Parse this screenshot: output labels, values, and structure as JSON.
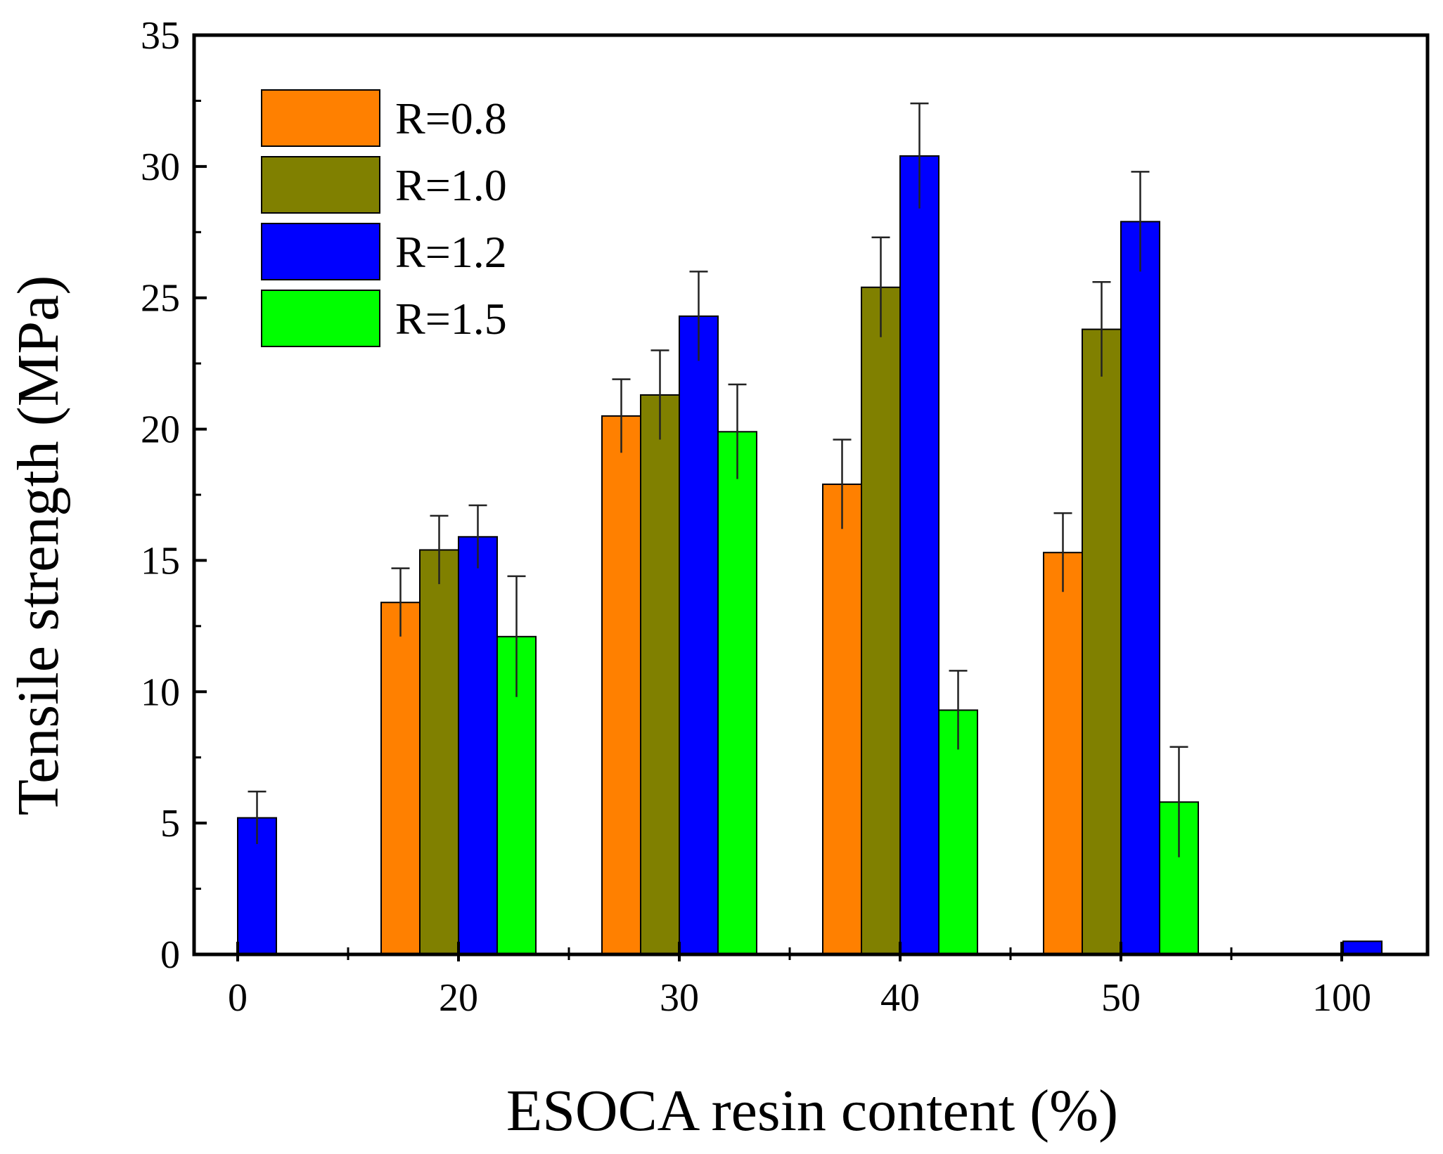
{
  "chart_data": {
    "type": "bar",
    "title": "",
    "xlabel": "ESOCA resin content (%)",
    "ylabel": "Tensile strength (MPa)",
    "categories": [
      "0",
      "20",
      "30",
      "40",
      "50",
      "100"
    ],
    "ylim": [
      0,
      35
    ],
    "yticks": [
      "0",
      "5",
      "10",
      "15",
      "20",
      "25",
      "30",
      "35"
    ],
    "yticks_values": [
      0,
      5,
      10,
      15,
      20,
      25,
      30,
      35
    ],
    "grid": false,
    "legend_position": "top-left",
    "series": [
      {
        "name": "R=0.8",
        "color": "#ff8000",
        "values": [
          null,
          13.4,
          20.5,
          17.9,
          15.3,
          null
        ],
        "errors": [
          null,
          1.3,
          1.4,
          1.7,
          1.5,
          null
        ]
      },
      {
        "name": "R=1.0",
        "color": "#808000",
        "values": [
          null,
          15.4,
          21.3,
          25.4,
          23.8,
          null
        ],
        "errors": [
          null,
          1.3,
          1.7,
          1.9,
          1.8,
          null
        ]
      },
      {
        "name": "R=1.2",
        "color": "#0000ff",
        "values": [
          5.2,
          15.9,
          24.3,
          30.4,
          27.9,
          0.5
        ],
        "errors": [
          1.0,
          1.2,
          1.7,
          2.0,
          1.9,
          null
        ]
      },
      {
        "name": "R=1.5",
        "color": "#00ff00",
        "values": [
          null,
          12.1,
          19.9,
          9.3,
          5.8,
          null
        ],
        "errors": [
          null,
          2.3,
          1.8,
          1.5,
          2.1,
          null
        ]
      }
    ]
  }
}
